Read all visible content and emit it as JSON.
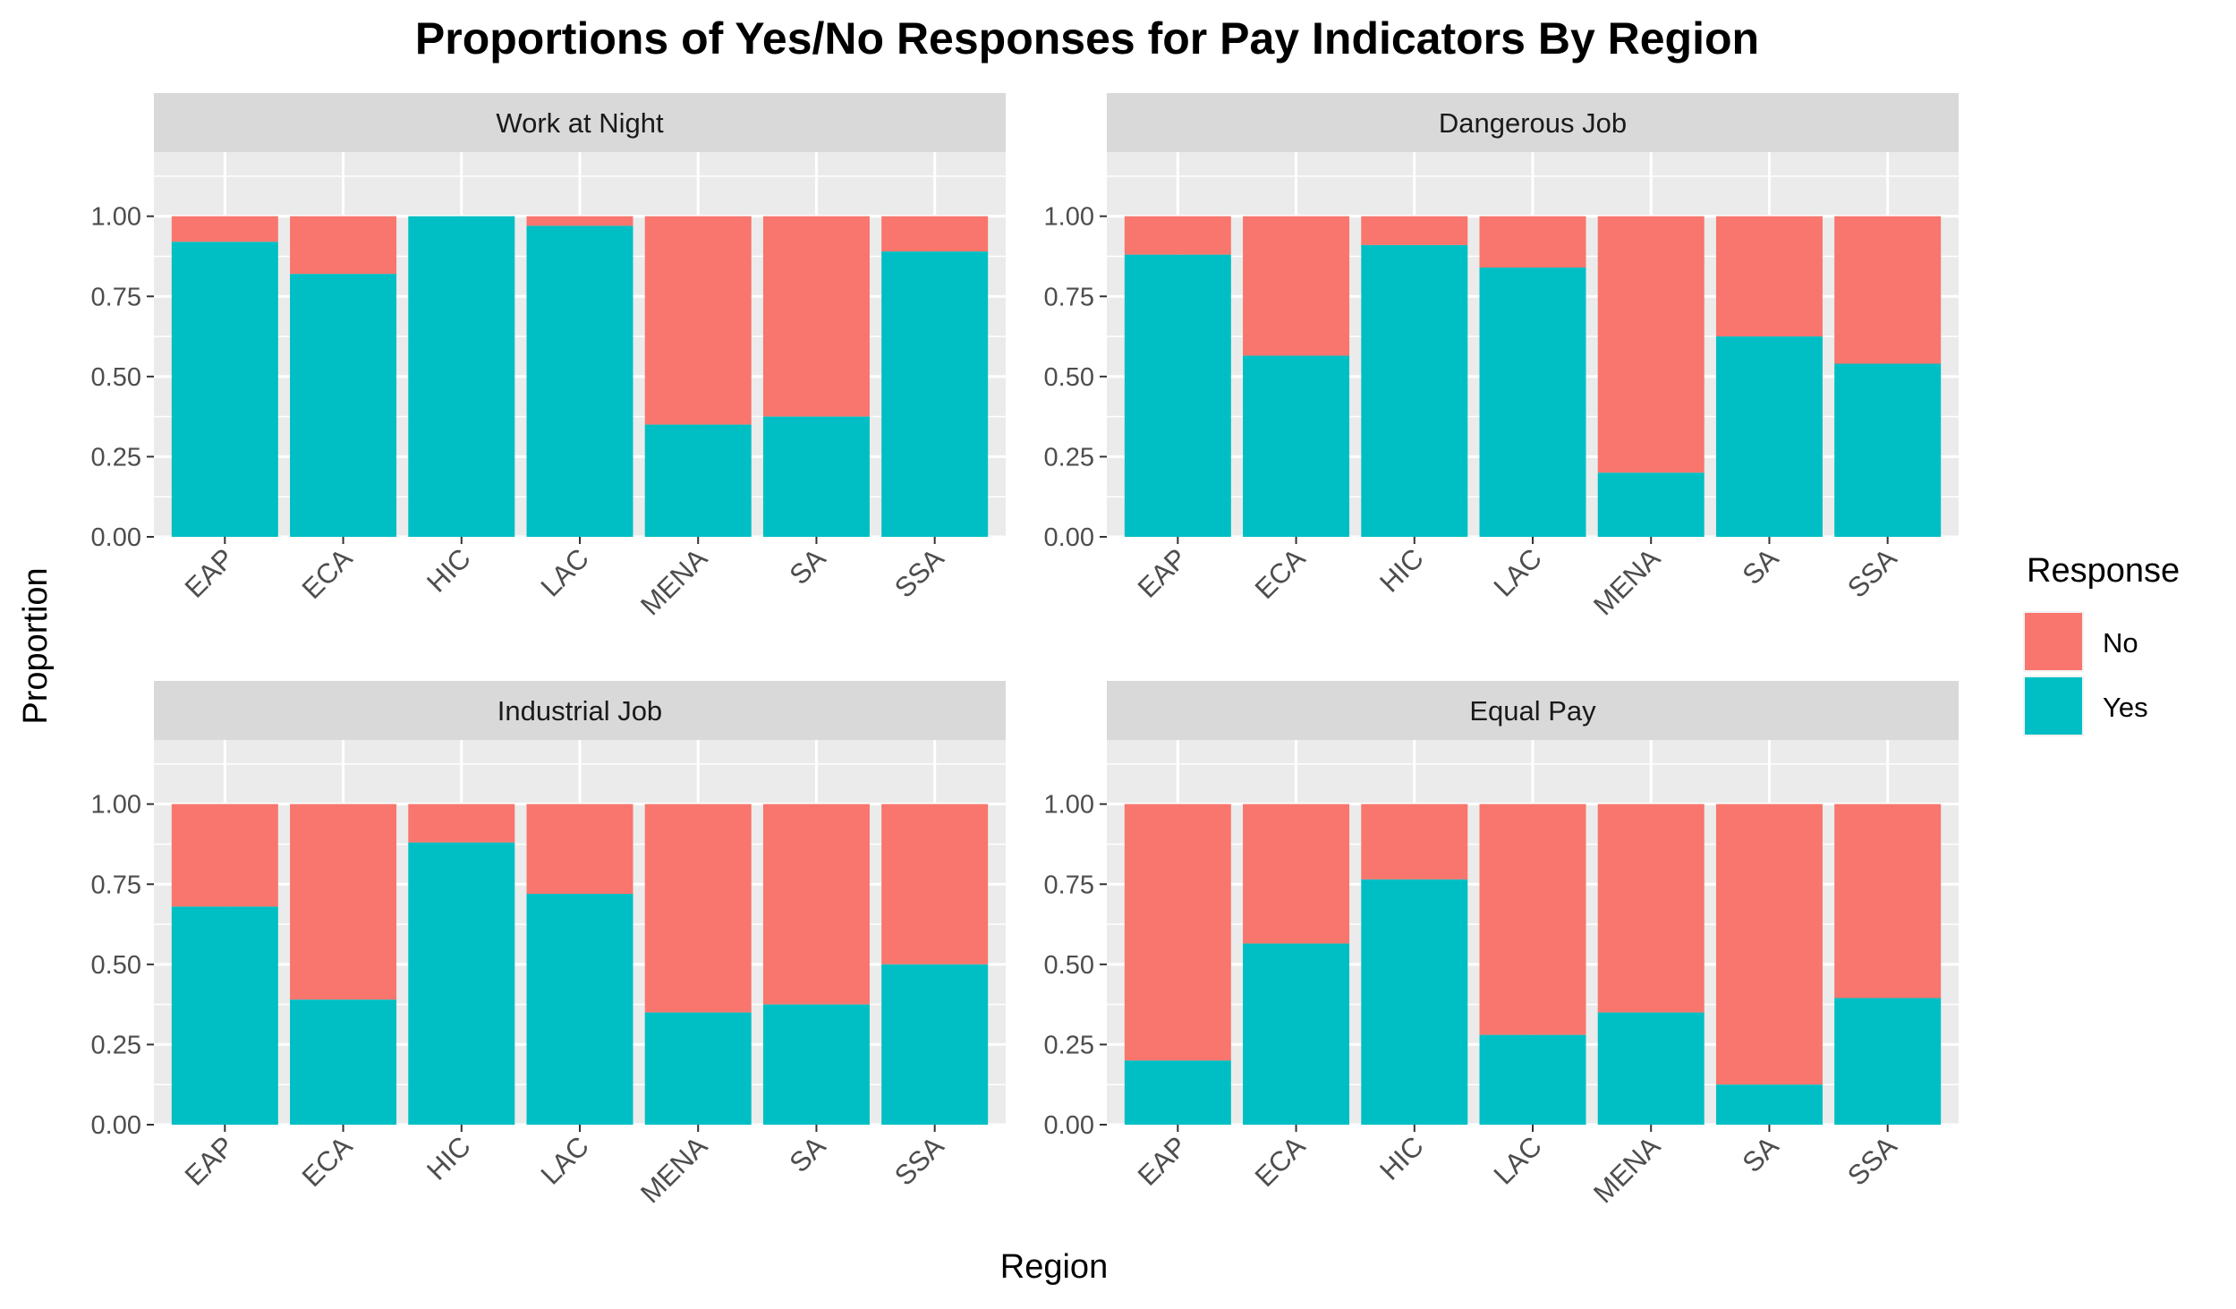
{
  "chart_data": {
    "type": "bar",
    "stacked": true,
    "title": "Proportions of Yes/No Responses for Pay Indicators By Region",
    "xlabel": "Region",
    "ylabel": "Proportion",
    "ylim": [
      0,
      1.2
    ],
    "yticks": [
      "0.00",
      "0.25",
      "0.50",
      "0.75",
      "1.00"
    ],
    "categories": [
      "EAP",
      "ECA",
      "HIC",
      "LAC",
      "MENA",
      "SA",
      "SSA"
    ],
    "legend": {
      "title": "Response",
      "position": "right",
      "items": [
        {
          "label": "No",
          "color": "#F8766D"
        },
        {
          "label": "Yes",
          "color": "#00BFC4"
        }
      ]
    },
    "panels": [
      {
        "name": "Work at Night",
        "yes": [
          0.92,
          0.82,
          1.0,
          0.97,
          0.35,
          0.375,
          0.89
        ]
      },
      {
        "name": "Dangerous Job",
        "yes": [
          0.88,
          0.565,
          0.91,
          0.84,
          0.2,
          0.625,
          0.54
        ]
      },
      {
        "name": "Industrial Job",
        "yes": [
          0.68,
          0.39,
          0.88,
          0.72,
          0.35,
          0.375,
          0.5
        ]
      },
      {
        "name": "Equal Pay",
        "yes": [
          0.2,
          0.565,
          0.765,
          0.28,
          0.35,
          0.125,
          0.395
        ]
      }
    ]
  }
}
